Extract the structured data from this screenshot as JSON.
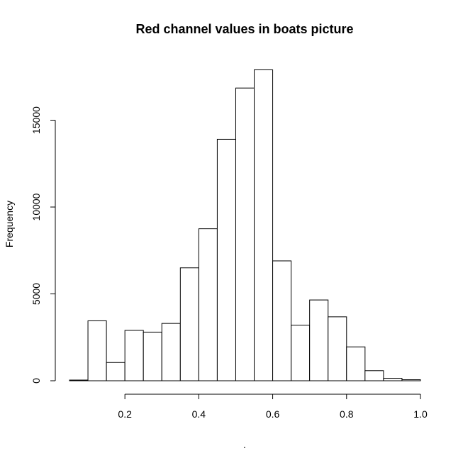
{
  "chart_data": {
    "type": "bar",
    "title": "Red channel values in boats picture",
    "xlabel": ".",
    "ylabel": "Frequency",
    "bin_width": 0.05,
    "bins": [
      {
        "start": 0.05,
        "end": 0.1,
        "count": 40
      },
      {
        "start": 0.1,
        "end": 0.15,
        "count": 3450
      },
      {
        "start": 0.15,
        "end": 0.2,
        "count": 1050
      },
      {
        "start": 0.2,
        "end": 0.25,
        "count": 2900
      },
      {
        "start": 0.25,
        "end": 0.3,
        "count": 2800
      },
      {
        "start": 0.3,
        "end": 0.35,
        "count": 3300
      },
      {
        "start": 0.35,
        "end": 0.4,
        "count": 6500
      },
      {
        "start": 0.4,
        "end": 0.45,
        "count": 8750
      },
      {
        "start": 0.45,
        "end": 0.5,
        "count": 13900
      },
      {
        "start": 0.5,
        "end": 0.55,
        "count": 16850
      },
      {
        "start": 0.55,
        "end": 0.6,
        "count": 17900
      },
      {
        "start": 0.6,
        "end": 0.65,
        "count": 6900
      },
      {
        "start": 0.65,
        "end": 0.7,
        "count": 3200
      },
      {
        "start": 0.7,
        "end": 0.75,
        "count": 4650
      },
      {
        "start": 0.75,
        "end": 0.8,
        "count": 3680
      },
      {
        "start": 0.8,
        "end": 0.85,
        "count": 1950
      },
      {
        "start": 0.85,
        "end": 0.9,
        "count": 580
      },
      {
        "start": 0.9,
        "end": 0.95,
        "count": 140
      },
      {
        "start": 0.95,
        "end": 1.0,
        "count": 60
      }
    ],
    "xlim": [
      0.05,
      1.0
    ],
    "ylim": [
      0,
      18000
    ],
    "x_ticks": [
      {
        "value": 0.2,
        "label": "0.2"
      },
      {
        "value": 0.4,
        "label": "0.4"
      },
      {
        "value": 0.6,
        "label": "0.6"
      },
      {
        "value": 0.8,
        "label": "0.8"
      },
      {
        "value": 1.0,
        "label": "1.0"
      }
    ],
    "y_ticks": [
      {
        "value": 0,
        "label": "0"
      },
      {
        "value": 5000,
        "label": "5000"
      },
      {
        "value": 10000,
        "label": "10000"
      },
      {
        "value": 15000,
        "label": "15000"
      }
    ],
    "grid": false,
    "legend": "none",
    "colors": {
      "bar_fill": "#ffffff",
      "bar_stroke": "#000000"
    }
  }
}
